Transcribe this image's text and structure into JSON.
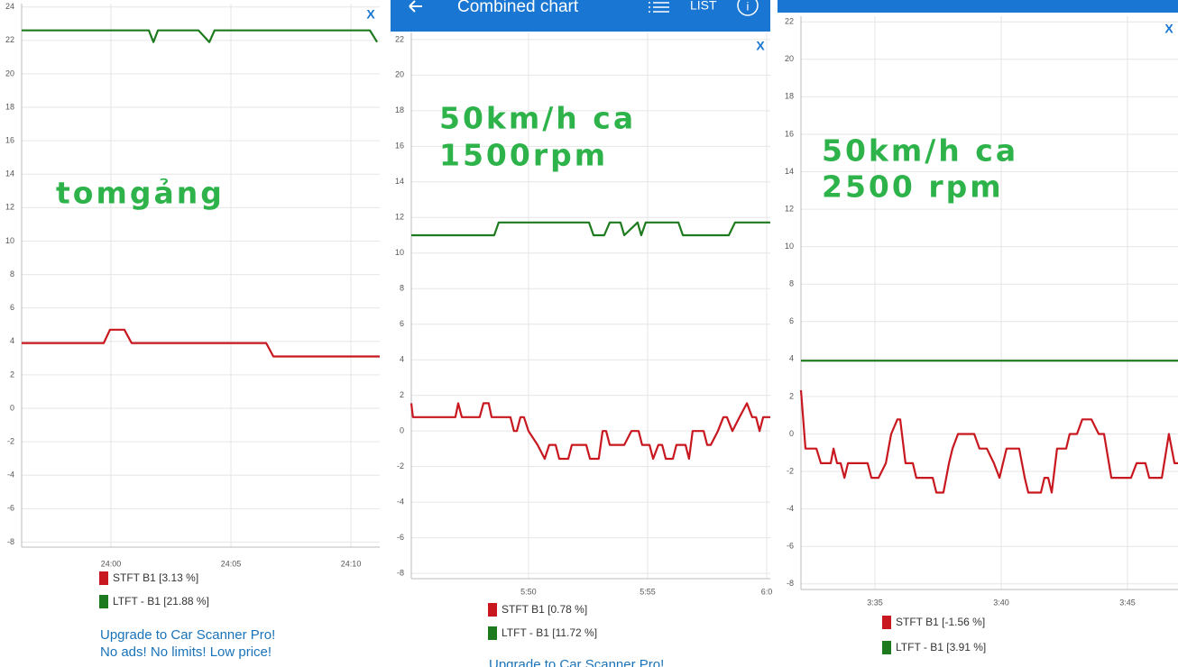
{
  "header": {
    "title": "Combined chart",
    "list": "LIST"
  },
  "chart_data": [
    {
      "type": "line",
      "close_label": "X",
      "annotation": [
        "tomgảng"
      ],
      "promo": [
        "Upgrade to Car Scanner Pro!",
        "No ads! No limits! Low price!"
      ],
      "xlim": [
        1436.28,
        1451.2
      ],
      "xticks": [
        {
          "value": 1440,
          "label": "24:00"
        },
        {
          "value": 1445,
          "label": "24:05"
        },
        {
          "value": 1450,
          "label": "24:10"
        }
      ],
      "ylim": [
        -8.3,
        24.2
      ],
      "yticks": [
        -8,
        -6,
        -4,
        -2,
        0,
        2,
        4,
        6,
        8,
        10,
        12,
        14,
        16,
        18,
        20,
        22,
        24
      ],
      "grid": true,
      "series": [
        {
          "name": "STFT B1 [3.13 %]",
          "color": "#c8171e",
          "x": [
            1436.28,
            1439.7,
            1439.96,
            1440.56,
            1440.86,
            1446.47,
            1446.77,
            1451.2
          ],
          "values": [
            3.9,
            3.9,
            4.7,
            4.7,
            3.9,
            3.9,
            3.1,
            3.1
          ]
        },
        {
          "name": "LTFT - B1 [21.88 %]",
          "color": "#1e7a1e",
          "x": [
            1436.28,
            1441.58,
            1441.77,
            1441.96,
            1443.65,
            1444.1,
            1444.32,
            1450.79,
            1451.09
          ],
          "values": [
            22.6,
            22.6,
            21.9,
            22.6,
            22.6,
            21.9,
            22.6,
            22.6,
            21.9
          ]
        }
      ]
    },
    {
      "type": "line",
      "close_label": "X",
      "annotation": [
        "50km/h ca",
        "1500rpm"
      ],
      "promo": [
        "Upgrade to Car Scanner Pro!"
      ],
      "xlim": [
        345.08,
        360.15
      ],
      "xticks": [
        {
          "value": 350,
          "label": "5:50"
        },
        {
          "value": 355,
          "label": "5:55"
        },
        {
          "value": 360,
          "label": "6:0"
        }
      ],
      "ylim": [
        -8.3,
        22.4
      ],
      "yticks": [
        -8,
        -6,
        -4,
        -2,
        0,
        2,
        4,
        6,
        8,
        10,
        12,
        14,
        16,
        18,
        20,
        22
      ],
      "grid": true,
      "series": [
        {
          "name": "STFT B1 [0.78 %]",
          "color": "#c8171e",
          "x": [
            345.08,
            345.15,
            346.93,
            347.05,
            347.2,
            347.95,
            348.11,
            348.33,
            348.45,
            349.24,
            349.39,
            349.51,
            349.66,
            349.81,
            350,
            350.38,
            350.68,
            350.87,
            351.14,
            351.29,
            351.67,
            351.82,
            352.42,
            352.58,
            352.95,
            353.11,
            353.26,
            353.41,
            354.02,
            354.32,
            354.62,
            354.77,
            355.08,
            355.23,
            355.45,
            355.61,
            355.76,
            356.06,
            356.21,
            356.59,
            356.74,
            356.89,
            357.35,
            357.5,
            357.65,
            357.95,
            358.18,
            358.33,
            358.56,
            358.86,
            359.17,
            359.39,
            359.55,
            359.7,
            359.85,
            360.15
          ],
          "values": [
            1.56,
            0.78,
            0.78,
            1.56,
            0.78,
            0.78,
            1.56,
            1.56,
            0.78,
            0.78,
            0,
            0,
            0.78,
            0.78,
            0,
            -0.78,
            -1.56,
            -0.78,
            -0.78,
            -1.56,
            -1.56,
            -0.78,
            -0.78,
            -1.56,
            -1.56,
            0,
            0,
            -0.78,
            -0.78,
            0,
            0,
            -0.78,
            -0.78,
            -1.56,
            -0.78,
            -0.78,
            -1.56,
            -1.56,
            -0.78,
            -0.78,
            -1.56,
            0,
            0,
            -0.78,
            -0.78,
            0,
            0.78,
            0.78,
            0,
            0.78,
            1.56,
            0.78,
            0.78,
            0,
            0.78,
            0.78
          ]
        },
        {
          "name": "LTFT - B1 [11.72 %]",
          "color": "#1e7a1e",
          "x": [
            345.08,
            348.56,
            348.75,
            352.54,
            352.73,
            353.18,
            353.41,
            353.86,
            354.02,
            354.58,
            354.73,
            354.92,
            356.29,
            356.48,
            358.41,
            358.67,
            360.15
          ],
          "values": [
            11.0,
            11.0,
            11.72,
            11.72,
            11.0,
            11.0,
            11.72,
            11.72,
            11.0,
            11.72,
            11.0,
            11.72,
            11.72,
            11.0,
            11.0,
            11.72,
            11.72
          ]
        }
      ]
    },
    {
      "type": "line",
      "close_label": "X",
      "annotation": [
        "50km/h ca",
        "2500 rpm"
      ],
      "xlim": [
        212.07,
        227.0
      ],
      "xticks": [
        {
          "value": 215,
          "label": "3:35"
        },
        {
          "value": 220,
          "label": "3:40"
        },
        {
          "value": 225,
          "label": "3:45"
        }
      ],
      "ylim": [
        -8.3,
        22.3
      ],
      "yticks": [
        -8,
        -6,
        -4,
        -2,
        0,
        2,
        4,
        6,
        8,
        10,
        12,
        14,
        16,
        18,
        20,
        22
      ],
      "grid": true,
      "series": [
        {
          "name": "STFT B1 [-1.56 %]",
          "color": "#c8171e",
          "x": [
            212.07,
            212.25,
            212.68,
            212.86,
            213.25,
            213.36,
            213.5,
            213.64,
            213.79,
            213.93,
            214.71,
            214.86,
            215.14,
            215.43,
            215.64,
            215.89,
            216.0,
            216.21,
            216.5,
            216.64,
            217.29,
            217.43,
            217.71,
            217.93,
            218.07,
            218.29,
            218.93,
            219.14,
            219.43,
            219.71,
            219.93,
            220.07,
            220.21,
            220.71,
            220.93,
            221.07,
            221.57,
            221.71,
            221.86,
            222.0,
            222.21,
            222.57,
            222.71,
            223.0,
            223.21,
            223.57,
            223.86,
            224.07,
            224.36,
            225.14,
            225.36,
            225.71,
            225.86,
            226.36,
            226.64,
            226.86,
            227.0
          ],
          "values": [
            2.34,
            -0.78,
            -0.78,
            -1.56,
            -1.56,
            -0.78,
            -1.56,
            -1.56,
            -2.34,
            -1.56,
            -1.56,
            -2.34,
            -2.34,
            -1.56,
            0,
            0.78,
            0.78,
            -1.56,
            -1.56,
            -2.34,
            -2.34,
            -3.13,
            -3.13,
            -1.56,
            -0.78,
            0,
            0,
            -0.78,
            -0.78,
            -1.56,
            -2.34,
            -1.56,
            -0.78,
            -0.78,
            -2.34,
            -3.13,
            -3.13,
            -2.34,
            -2.34,
            -3.13,
            -0.78,
            -0.78,
            0,
            0,
            0.78,
            0.78,
            0,
            0,
            -2.34,
            -2.34,
            -1.56,
            -1.56,
            -2.34,
            -2.34,
            0,
            -1.56,
            -1.56
          ]
        },
        {
          "name": "LTFT - B1 [3.91 %]",
          "color": "#1e7a1e",
          "x": [
            212.07,
            227.0
          ],
          "values": [
            3.91,
            3.91
          ]
        }
      ]
    }
  ]
}
